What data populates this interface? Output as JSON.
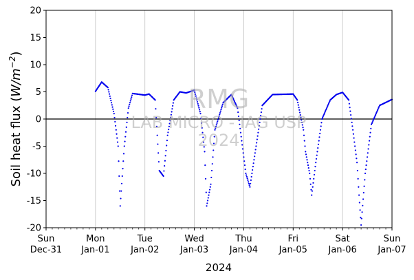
{
  "chart_data": {
    "type": "scatter",
    "ylabel_text": "Soil heat flux (",
    "ylabel_unit_italic": "W/m",
    "ylabel_exp": "−2",
    "ylabel_close": ")",
    "xlabel": "2024",
    "ylim": [
      -20,
      20
    ],
    "xlim_days": [
      0,
      7
    ],
    "y_ticks": [
      -20,
      -15,
      -10,
      -5,
      0,
      5,
      10,
      15,
      20
    ],
    "x_ticks": [
      {
        "day": "Sun",
        "date": "Dec-31"
      },
      {
        "day": "Mon",
        "date": "Jan-01"
      },
      {
        "day": "Tue",
        "date": "Jan-02"
      },
      {
        "day": "Wed",
        "date": "Jan-03"
      },
      {
        "day": "Thu",
        "date": "Jan-04"
      },
      {
        "day": "Fri",
        "date": "Jan-05"
      },
      {
        "day": "Sat",
        "date": "Jan-06"
      },
      {
        "day": "Sun",
        "date": "Jan-07"
      }
    ],
    "grid": "vertical",
    "zero_line": true,
    "marker_color": "#0000ee",
    "series_x_start": "Jan-01 00:00",
    "series_x_end": "Jan-07 00:00",
    "series_points": [
      [
        "Jan-01 00:00",
        5.1
      ],
      [
        "Jan-01 03:00",
        6.8
      ],
      [
        "Jan-01 06:00",
        5.8
      ],
      [
        "Jan-01 09:00",
        1.0
      ],
      [
        "Jan-01 11:00",
        -5.0
      ],
      [
        "Jan-01 12:00",
        -16.0
      ],
      [
        "Jan-01 14:00",
        -5.0
      ],
      [
        "Jan-01 16:00",
        2.0
      ],
      [
        "Jan-01 18:00",
        4.7
      ],
      [
        "Jan-02 00:00",
        4.4
      ],
      [
        "Jan-02 02:00",
        4.6
      ],
      [
        "Jan-02 05:00",
        3.5
      ],
      [
        "Jan-02 07:00",
        -9.5
      ],
      [
        "Jan-02 09:00",
        -10.5
      ],
      [
        "Jan-02 11:00",
        -3.0
      ],
      [
        "Jan-02 14:00",
        3.5
      ],
      [
        "Jan-02 17:00",
        5.0
      ],
      [
        "Jan-02 20:00",
        4.8
      ],
      [
        "Jan-03 00:00",
        5.3
      ],
      [
        "Jan-03 03:00",
        1.0
      ],
      [
        "Jan-03 05:00",
        -6.0
      ],
      [
        "Jan-03 06:00",
        -16.0
      ],
      [
        "Jan-03 08:00",
        -12.0
      ],
      [
        "Jan-03 10:00",
        -2.0
      ],
      [
        "Jan-03 14:00",
        3.0
      ],
      [
        "Jan-03 18:00",
        4.5
      ],
      [
        "Jan-03 21:00",
        2.0
      ],
      [
        "Jan-04 00:00",
        -7.0
      ],
      [
        "Jan-04 01:00",
        -10.0
      ],
      [
        "Jan-04 03:00",
        -12.5
      ],
      [
        "Jan-04 06:00",
        -5.0
      ],
      [
        "Jan-04 09:00",
        2.5
      ],
      [
        "Jan-04 14:00",
        4.5
      ],
      [
        "Jan-05 00:00",
        4.6
      ],
      [
        "Jan-05 02:00",
        3.5
      ],
      [
        "Jan-05 05:00",
        -2.0
      ],
      [
        "Jan-05 06:00",
        -6.0
      ],
      [
        "Jan-05 08:00",
        -10.0
      ],
      [
        "Jan-05 09:00",
        -14.0
      ],
      [
        "Jan-05 11:00",
        -8.0
      ],
      [
        "Jan-05 14:00",
        0.0
      ],
      [
        "Jan-05 18:00",
        3.5
      ],
      [
        "Jan-05 21:00",
        4.5
      ],
      [
        "Jan-06 00:00",
        4.9
      ],
      [
        "Jan-06 03:00",
        3.5
      ],
      [
        "Jan-06 05:00",
        -2.0
      ],
      [
        "Jan-06 07:00",
        -8.0
      ],
      [
        "Jan-06 08:00",
        -14.0
      ],
      [
        "Jan-06 09:00",
        -19.5
      ],
      [
        "Jan-06 11:00",
        -10.0
      ],
      [
        "Jan-06 14:00",
        -1.0
      ],
      [
        "Jan-06 18:00",
        2.5
      ],
      [
        "Jan-07 00:00",
        3.6
      ]
    ]
  },
  "watermark": {
    "line1": "RMG",
    "line2": "LAB MICRO - IAG USP",
    "line3": "2024"
  }
}
